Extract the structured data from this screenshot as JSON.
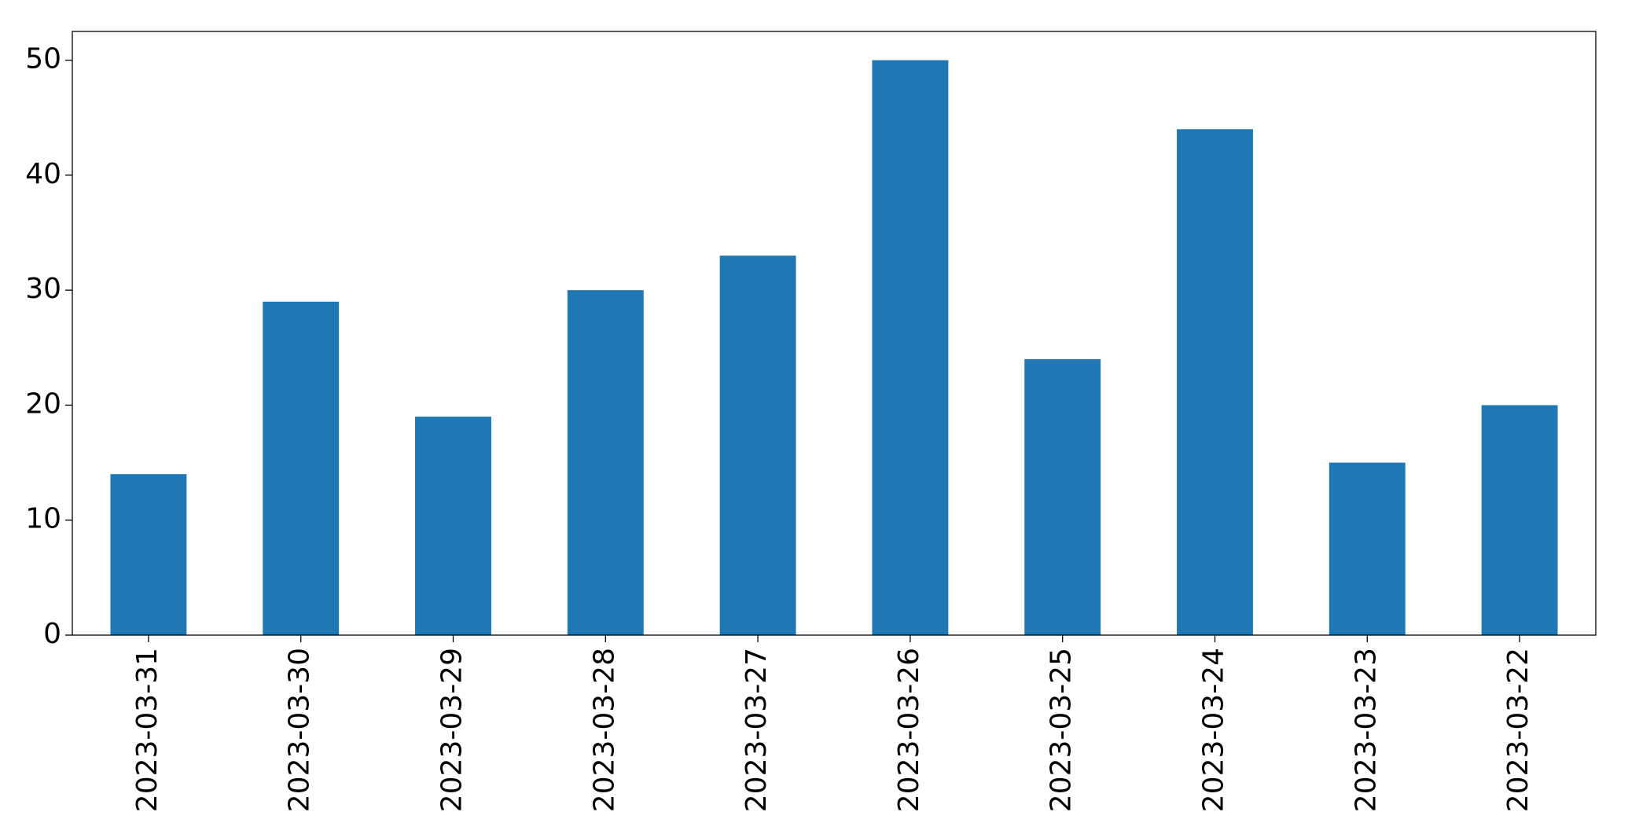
{
  "chart_data": {
    "type": "bar",
    "categories": [
      "2023-03-31",
      "2023-03-30",
      "2023-03-29",
      "2023-03-28",
      "2023-03-27",
      "2023-03-26",
      "2023-03-25",
      "2023-03-24",
      "2023-03-23",
      "2023-03-22"
    ],
    "values": [
      14,
      29,
      19,
      30,
      33,
      50,
      24,
      44,
      15,
      20
    ],
    "color": "#1f77b4",
    "ylim": [
      0,
      52.5
    ],
    "yticks": [
      0,
      10,
      20,
      30,
      40,
      50
    ],
    "grid": false
  }
}
